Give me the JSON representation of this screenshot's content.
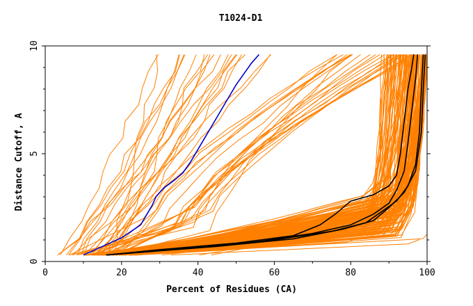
{
  "chart_data": {
    "type": "line",
    "title": "T1024-D1",
    "xlabel": "Percent of Residues (CA)",
    "ylabel": "Distance Cutoff, A",
    "xlim": [
      0,
      100
    ],
    "ylim": [
      0,
      10
    ],
    "x_ticks": [
      0,
      20,
      40,
      60,
      80,
      100
    ],
    "y_ticks": [
      0,
      5,
      10
    ],
    "grid": false,
    "legend": "none",
    "colors": {
      "models": "#ff8000",
      "highlight_blue": "#0000cc",
      "highlight_black": "#000000",
      "axes": "#000000",
      "background": "#ffffff"
    },
    "series": [
      {
        "name": "highlight-blue",
        "color": "#0000cc",
        "x": [
          10,
          15,
          20,
          25,
          26,
          27,
          28,
          29,
          31,
          34,
          36,
          38,
          40,
          42,
          44,
          46,
          48,
          50,
          52,
          54,
          56
        ],
        "y": [
          0.3,
          0.7,
          1.1,
          1.7,
          2.0,
          2.3,
          2.6,
          3.0,
          3.4,
          3.8,
          4.1,
          4.6,
          5.2,
          5.8,
          6.4,
          7.0,
          7.6,
          8.2,
          8.7,
          9.2,
          9.6
        ]
      },
      {
        "name": "highlight-black-1",
        "color": "#000000",
        "x": [
          16,
          30,
          50,
          65,
          72,
          76,
          80,
          86,
          90,
          92,
          93,
          94,
          95,
          96,
          96.5
        ],
        "y": [
          0.3,
          0.55,
          0.85,
          1.2,
          1.7,
          2.2,
          2.8,
          3.1,
          3.5,
          4.0,
          5.0,
          6.5,
          8.0,
          9.0,
          9.6
        ]
      },
      {
        "name": "highlight-black-2",
        "color": "#000000",
        "x": [
          16,
          35,
          55,
          70,
          80,
          86,
          90,
          92,
          94,
          95,
          96,
          97,
          97.5
        ],
        "y": [
          0.3,
          0.6,
          0.9,
          1.3,
          1.7,
          2.2,
          2.7,
          3.3,
          4.2,
          5.5,
          7.0,
          8.5,
          9.6
        ]
      },
      {
        "name": "highlight-black-3",
        "color": "#000000",
        "x": [
          16,
          40,
          60,
          75,
          84,
          88,
          92,
          95,
          97,
          98,
          98.5,
          99
        ],
        "y": [
          0.3,
          0.65,
          1.0,
          1.4,
          1.8,
          2.3,
          2.8,
          3.5,
          4.5,
          6.0,
          8.0,
          9.6
        ]
      },
      {
        "name": "highlight-black-4",
        "color": "#000000",
        "x": [
          16,
          45,
          65,
          78,
          86,
          90,
          94,
          97,
          98.5,
          99,
          99.5
        ],
        "y": [
          0.3,
          0.7,
          1.05,
          1.5,
          1.9,
          2.5,
          3.2,
          4.2,
          6.0,
          8.0,
          9.6
        ]
      },
      {
        "name": "models-group",
        "color": "#ff8000",
        "count": 150
      },
      {
        "name": "models-steep-group",
        "color": "#ff8000",
        "count": 20
      },
      {
        "name": "models-mid-group",
        "color": "#ff8000",
        "count": 22
      },
      {
        "name": "models-bottom-group",
        "color": "#ff8000",
        "count": 7
      }
    ]
  }
}
